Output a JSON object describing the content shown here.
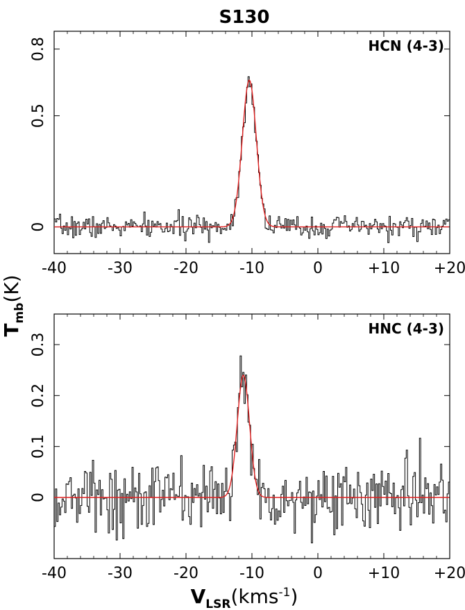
{
  "chart_data": {
    "title": "S130",
    "xlabel": {
      "main": "V",
      "sub": "LSR",
      "units": "(kms",
      "exp": "-1",
      "close": ")"
    },
    "ylabel": {
      "main": "T",
      "sub": "mb",
      "units": "(K)"
    },
    "panels": [
      {
        "type": "line",
        "label": "HCN (4-3)",
        "xlim": [
          -40,
          20
        ],
        "ylim": [
          -0.12,
          0.88
        ],
        "xticks": [
          -40,
          -30,
          -20,
          -10,
          0,
          10,
          20
        ],
        "xtick_labels": [
          "-40",
          "-30",
          "-20",
          "-10",
          "0",
          "+10",
          "+20"
        ],
        "yticks": [
          0,
          0.5,
          0.8
        ],
        "ytick_labels": [
          "0",
          "0.5",
          "0.8"
        ],
        "series": [
          {
            "style": "step",
            "color": "#000000",
            "noise_sigma": 0.025,
            "seed": 7
          },
          {
            "style": "gauss",
            "color": "#e02020",
            "amp": 0.66,
            "center": -10.4,
            "fwhm": 2.5
          }
        ]
      },
      {
        "type": "line",
        "label": "HNC (4-3)",
        "xlim": [
          -40,
          20
        ],
        "ylim": [
          -0.12,
          0.36
        ],
        "xticks": [
          -40,
          -30,
          -20,
          -10,
          0,
          10,
          20
        ],
        "xtick_labels": [
          "-40",
          "-30",
          "-20",
          "-10",
          "0",
          "+10",
          "+20"
        ],
        "yticks": [
          0,
          0.1,
          0.2,
          0.3
        ],
        "ytick_labels": [
          "0",
          "0.1",
          "0.2",
          "0.3"
        ],
        "series": [
          {
            "style": "step",
            "color": "#000000",
            "noise_sigma": 0.035,
            "seed": 13
          },
          {
            "style": "gauss",
            "color": "#e02020",
            "amp": 0.24,
            "center": -11.3,
            "fwhm": 2.2
          }
        ]
      }
    ]
  }
}
